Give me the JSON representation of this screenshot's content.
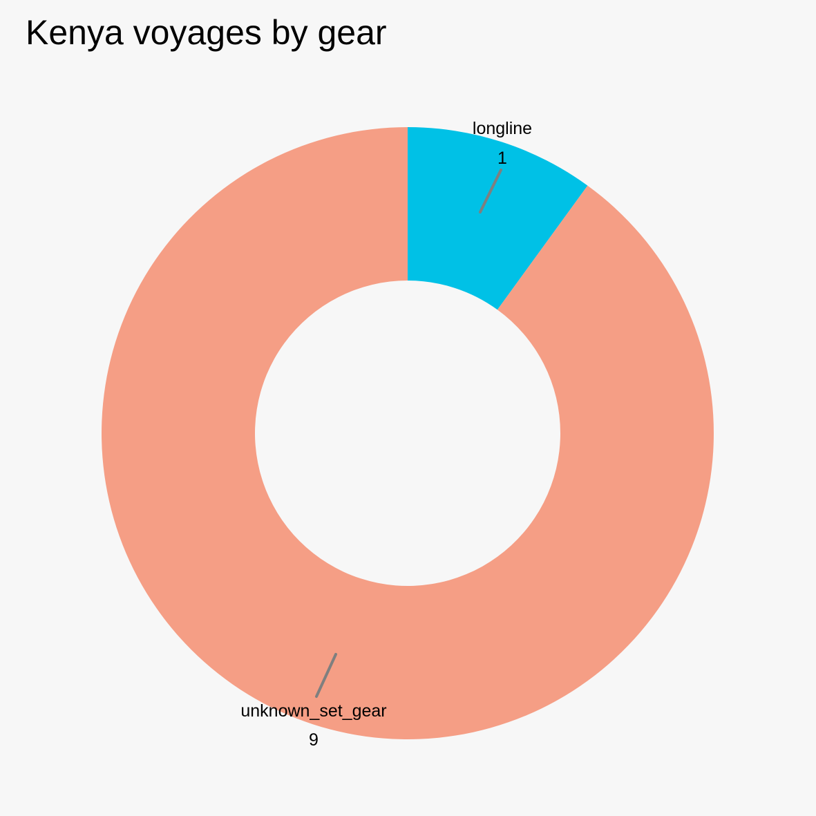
{
  "chart_data": {
    "type": "pie",
    "title": "Kenya voyages by gear",
    "hole": true,
    "slices": [
      {
        "label": "longline",
        "value": 1,
        "color": "#00c1e6"
      },
      {
        "label": "unknown_set_gear",
        "value": 9,
        "color": "#f59e85"
      }
    ],
    "leader_line_color": "#7f7f7f"
  }
}
